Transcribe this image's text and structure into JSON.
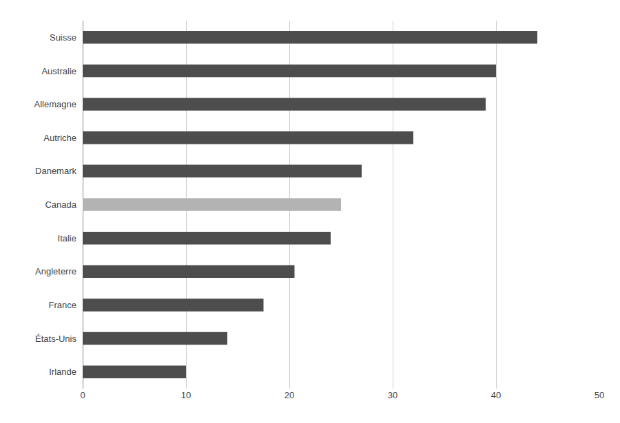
{
  "chart_data": {
    "type": "bar",
    "orientation": "horizontal",
    "categories": [
      "Suisse",
      "Australie",
      "Allemagne",
      "Autriche",
      "Danemark",
      "Canada",
      "Italie",
      "Angleterre",
      "France",
      "États-Unis",
      "Irlande"
    ],
    "values": [
      44,
      40,
      39,
      32,
      27,
      25,
      24,
      20.5,
      17.5,
      14,
      10
    ],
    "colors": [
      "#4d4d4d",
      "#4d4d4d",
      "#4d4d4d",
      "#4d4d4d",
      "#4d4d4d",
      "#b3b3b3",
      "#4d4d4d",
      "#4d4d4d",
      "#4d4d4d",
      "#4d4d4d",
      "#4d4d4d"
    ],
    "xlim": [
      0,
      50
    ],
    "xticks": [
      0,
      10,
      20,
      30,
      40,
      50
    ],
    "grid": true
  }
}
